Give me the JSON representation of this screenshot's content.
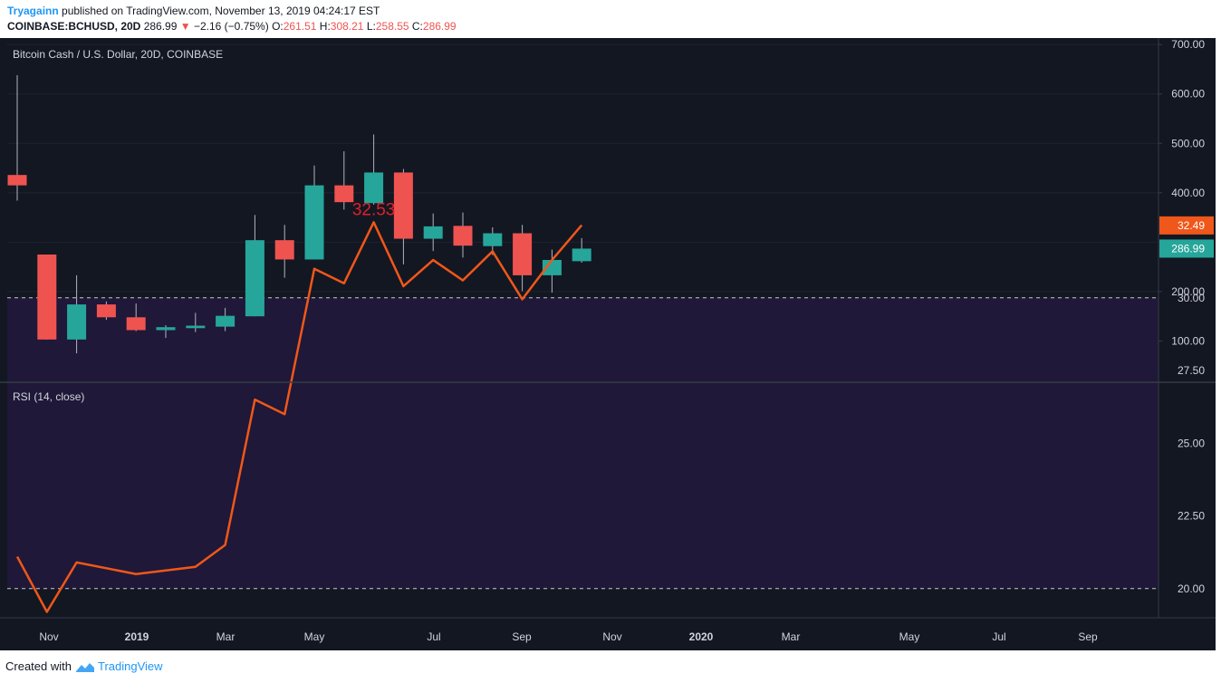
{
  "header": {
    "author": "Tryagainn",
    "published": "published on TradingView.com, November 13, 2019 04:24:17 EST",
    "symbol": "COINBASE:BCHUSD, 20D",
    "last": "286.99",
    "change_arrow": "▼",
    "change": "−2.16 (−0.75%)",
    "o_label": "O:",
    "o": "261.51",
    "h_label": "H:",
    "h": "308.21",
    "l_label": "L:",
    "l": "258.55",
    "c_label": "C:",
    "c": "286.99"
  },
  "footer": {
    "created_with": "Created with",
    "brand": "TradingView"
  },
  "colors": {
    "background": "#131722",
    "up": "#26a69a",
    "down": "#ef5350",
    "rsi_line": "#f0571a",
    "rsi_band": "#1f1838",
    "axis_text": "#d1d4dc"
  },
  "chart_data": [
    {
      "type": "candlestick",
      "title": "Bitcoin Cash / U.S. Dollar, 20D, COINBASE",
      "ylim": [
        0,
        700
      ],
      "yticks": [
        "100.00",
        "200.00",
        "400.00",
        "500.00",
        "600.00",
        "700.00"
      ],
      "ytick_values": [
        100,
        200,
        400,
        500,
        600,
        700
      ],
      "last_price_label": "286.99",
      "last_price": 287,
      "candles": [
        {
          "o": 436,
          "h": 638,
          "l": 384,
          "c": 415
        },
        {
          "o": 275,
          "h": 275,
          "l": 103,
          "c": 103
        },
        {
          "o": 103,
          "h": 233,
          "l": 75,
          "c": 174
        },
        {
          "o": 174,
          "h": 180,
          "l": 143,
          "c": 148
        },
        {
          "o": 148,
          "h": 176,
          "l": 120,
          "c": 122
        },
        {
          "o": 122,
          "h": 132,
          "l": 106,
          "c": 128
        },
        {
          "o": 126,
          "h": 157,
          "l": 118,
          "c": 131
        },
        {
          "o": 129,
          "h": 167,
          "l": 120,
          "c": 151
        },
        {
          "o": 150,
          "h": 355,
          "l": 150,
          "c": 304
        },
        {
          "o": 304,
          "h": 335,
          "l": 228,
          "c": 265
        },
        {
          "o": 265,
          "h": 455,
          "l": 265,
          "c": 415
        },
        {
          "o": 415,
          "h": 484,
          "l": 366,
          "c": 381
        },
        {
          "o": 379,
          "h": 518,
          "l": 376,
          "c": 441
        },
        {
          "o": 441,
          "h": 448,
          "l": 255,
          "c": 307
        },
        {
          "o": 307,
          "h": 358,
          "l": 282,
          "c": 332
        },
        {
          "o": 333,
          "h": 360,
          "l": 269,
          "c": 293
        },
        {
          "o": 292,
          "h": 330,
          "l": 274,
          "c": 318
        },
        {
          "o": 318,
          "h": 335,
          "l": 201,
          "c": 233
        },
        {
          "o": 233,
          "h": 285,
          "l": 198,
          "c": 264
        },
        {
          "o": 261.51,
          "h": 308.21,
          "l": 258.55,
          "c": 286.99
        }
      ]
    },
    {
      "type": "line",
      "title": "RSI (14, close)",
      "ylim": [
        18,
        33.5
      ],
      "yticks": [
        "20.00",
        "22.50",
        "25.00",
        "27.50",
        "30.00"
      ],
      "ytick_values": [
        20,
        22.5,
        25,
        27.5,
        30
      ],
      "last_value_label": "32.49",
      "last_value": 32.49,
      "peak_label": "32.53",
      "band": [
        20,
        30
      ],
      "values": [
        21.1,
        19.2,
        20.9,
        null,
        20.5,
        null,
        20.75,
        21.5,
        26.5,
        26.0,
        31.0,
        30.5,
        32.6,
        30.4,
        31.3,
        30.6,
        31.6,
        29.95,
        31.3,
        32.5
      ]
    }
  ],
  "xaxis": {
    "ticks": [
      {
        "label": "Nov",
        "bold": false
      },
      {
        "label": "2019",
        "bold": true
      },
      {
        "label": "Mar",
        "bold": false
      },
      {
        "label": "May",
        "bold": false
      },
      {
        "label": "Jul",
        "bold": false
      },
      {
        "label": "Sep",
        "bold": false
      },
      {
        "label": "Nov",
        "bold": false
      },
      {
        "label": "2020",
        "bold": true
      },
      {
        "label": "Mar",
        "bold": false
      },
      {
        "label": "May",
        "bold": false
      },
      {
        "label": "Jul",
        "bold": false
      },
      {
        "label": "Sep",
        "bold": false
      }
    ]
  }
}
